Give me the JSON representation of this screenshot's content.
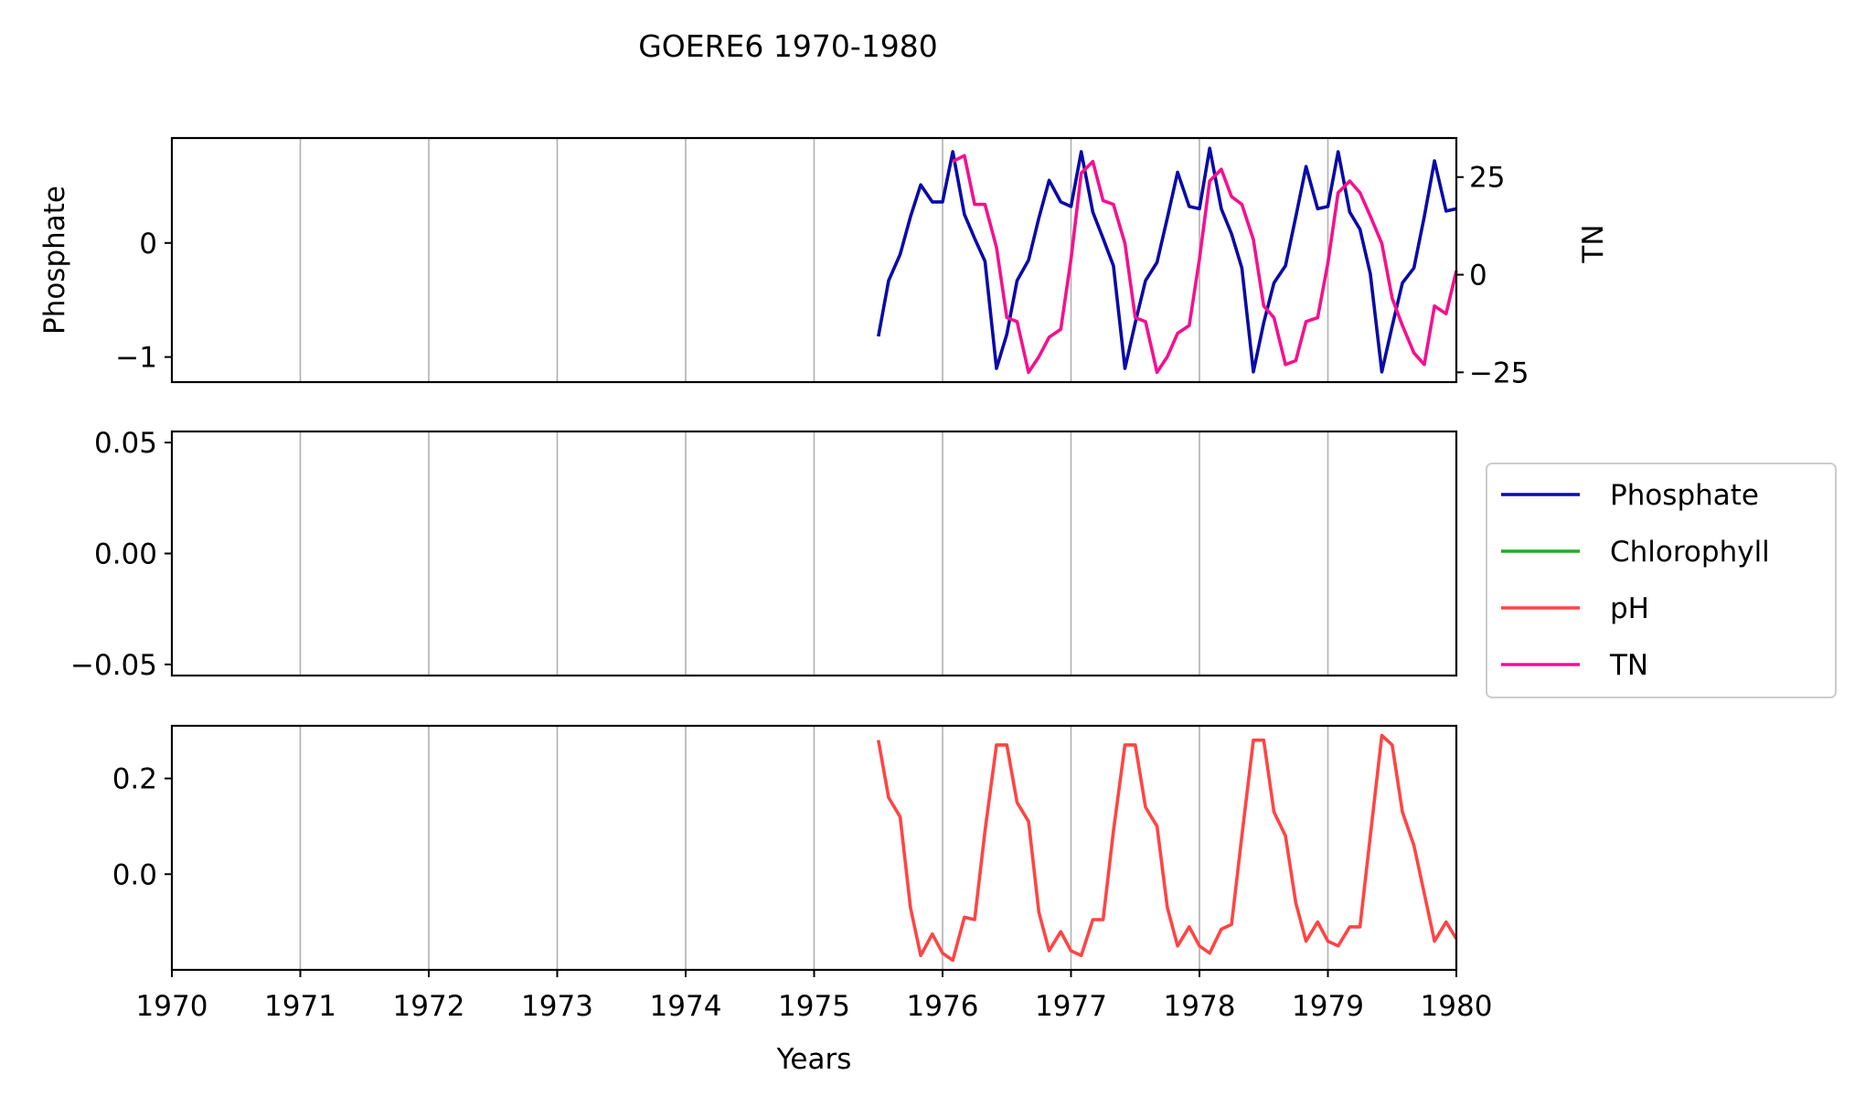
{
  "title": "GOERE6 1970-1980",
  "colors": {
    "phosphate": "#0a0aa8",
    "chlorophyll": "#22aa22",
    "ph": "#ff4444",
    "tn": "#f5108f",
    "grid": "#b0b0b0"
  },
  "legend": {
    "placement": "right, outside",
    "items": [
      {
        "label": "Phosphate",
        "color": "#0a0aa8"
      },
      {
        "label": "Chlorophyll",
        "color": "#22aa22"
      },
      {
        "label": "pH",
        "color": "#ff4444"
      },
      {
        "label": "TN",
        "color": "#f5108f"
      }
    ]
  },
  "chart_data": [
    {
      "type": "line",
      "title": "GOERE6 1970-1980",
      "ylabel": "Phosphate",
      "y2label": "TN",
      "xlim": [
        1970,
        1980
      ],
      "ylim": [
        -1.22,
        0.92
      ],
      "y2lim": [
        -27.5,
        35
      ],
      "x_ticks": [
        1971,
        1972,
        1973,
        1974,
        1975,
        1976,
        1977,
        1978,
        1979
      ],
      "y_ticks": [
        {
          "v": 0,
          "label": "0"
        },
        {
          "v": -1,
          "label": "−1"
        }
      ],
      "y2_ticks": [
        {
          "v": 25,
          "label": "25"
        },
        {
          "v": 0,
          "label": "0"
        },
        {
          "v": -25,
          "label": "−25"
        }
      ],
      "grid": "x",
      "series": [
        {
          "name": "Phosphate",
          "axis": "left",
          "color": "#0a0aa8",
          "x": [
            1975.5,
            1975.58,
            1975.67,
            1975.75,
            1975.83,
            1975.92,
            1976.0,
            1976.08,
            1976.17,
            1976.25,
            1976.33,
            1976.42,
            1976.5,
            1976.58,
            1976.67,
            1976.75,
            1976.83,
            1976.92,
            1977.0,
            1977.08,
            1977.17,
            1977.25,
            1977.33,
            1977.42,
            1977.5,
            1977.58,
            1977.67,
            1977.75,
            1977.83,
            1977.92,
            1978.0,
            1978.08,
            1978.17,
            1978.25,
            1978.33,
            1978.42,
            1978.5,
            1978.58,
            1978.67,
            1978.75,
            1978.83,
            1978.92,
            1979.0,
            1979.08,
            1979.17,
            1979.25,
            1979.33,
            1979.42,
            1979.5,
            1979.58,
            1979.67,
            1979.75,
            1979.83,
            1979.92,
            1980.0
          ],
          "y": [
            -0.82,
            -0.33,
            -0.1,
            0.23,
            0.51,
            0.36,
            0.36,
            0.8,
            0.25,
            0.04,
            -0.16,
            -1.1,
            -0.8,
            -0.33,
            -0.15,
            0.22,
            0.55,
            0.36,
            0.32,
            0.8,
            0.27,
            0.04,
            -0.2,
            -1.1,
            -0.7,
            -0.33,
            -0.17,
            0.22,
            0.62,
            0.32,
            0.3,
            0.83,
            0.3,
            0.08,
            -0.22,
            -1.13,
            -0.7,
            -0.35,
            -0.2,
            0.23,
            0.67,
            0.3,
            0.32,
            0.8,
            0.27,
            0.12,
            -0.27,
            -1.13,
            -0.73,
            -0.35,
            -0.22,
            0.23,
            0.72,
            0.28,
            0.3
          ]
        },
        {
          "name": "TN",
          "axis": "right",
          "color": "#f5108f",
          "x": [
            1976.08,
            1976.17,
            1976.25,
            1976.33,
            1976.42,
            1976.5,
            1976.58,
            1976.67,
            1976.75,
            1976.83,
            1976.92,
            1977.0,
            1977.08,
            1977.17,
            1977.25,
            1977.33,
            1977.42,
            1977.5,
            1977.58,
            1977.67,
            1977.75,
            1977.83,
            1977.92,
            1978.0,
            1978.08,
            1978.17,
            1978.25,
            1978.33,
            1978.42,
            1978.5,
            1978.58,
            1978.67,
            1978.75,
            1978.83,
            1978.92,
            1979.0,
            1979.08,
            1979.17,
            1979.25,
            1979.33,
            1979.42,
            1979.5,
            1979.58,
            1979.67,
            1979.75,
            1979.83,
            1979.92,
            1980.0
          ],
          "y": [
            29,
            30.5,
            18,
            18,
            7,
            -11,
            -12,
            -25,
            -21,
            -16,
            -14,
            4,
            26,
            29,
            19,
            18,
            8,
            -11,
            -12,
            -25,
            -21,
            -15,
            -13,
            4,
            24,
            27,
            20,
            18,
            9,
            -8,
            -11,
            -23,
            -22,
            -12,
            -11,
            3,
            21,
            24,
            21,
            15,
            8,
            -6,
            -13,
            -20,
            -23,
            -8,
            -10,
            1
          ]
        }
      ]
    },
    {
      "type": "line",
      "xlim": [
        1970,
        1980
      ],
      "ylim": [
        -0.055,
        0.055
      ],
      "x_ticks": [
        1971,
        1972,
        1973,
        1974,
        1975,
        1976,
        1977,
        1978,
        1979
      ],
      "y_ticks": [
        {
          "v": 0.05,
          "label": "0.05"
        },
        {
          "v": 0,
          "label": "0.00"
        },
        {
          "v": -0.05,
          "label": "−0.05"
        }
      ],
      "grid": "x",
      "series": []
    },
    {
      "type": "line",
      "xlabel": "Years",
      "xlim": [
        1970,
        1980
      ],
      "ylim": [
        -0.2,
        0.31
      ],
      "x_ticks": [
        1971,
        1972,
        1973,
        1974,
        1975,
        1976,
        1977,
        1978,
        1979
      ],
      "x_tick_labels": [
        {
          "v": 1970,
          "label": "1970"
        },
        {
          "v": 1971,
          "label": "1971"
        },
        {
          "v": 1972,
          "label": "1972"
        },
        {
          "v": 1973,
          "label": "1973"
        },
        {
          "v": 1974,
          "label": "1974"
        },
        {
          "v": 1975,
          "label": "1975"
        },
        {
          "v": 1976,
          "label": "1976"
        },
        {
          "v": 1977,
          "label": "1977"
        },
        {
          "v": 1978,
          "label": "1978"
        },
        {
          "v": 1979,
          "label": "1979"
        },
        {
          "v": 1980,
          "label": "1980"
        }
      ],
      "y_ticks": [
        {
          "v": 0.2,
          "label": "0.2"
        },
        {
          "v": 0,
          "label": "0.0"
        }
      ],
      "grid": "x",
      "series": [
        {
          "name": "pH",
          "axis": "left",
          "color": "#ff4444",
          "x": [
            1975.5,
            1975.58,
            1975.67,
            1975.75,
            1975.83,
            1975.92,
            1976.0,
            1976.08,
            1976.17,
            1976.25,
            1976.33,
            1976.42,
            1976.5,
            1976.58,
            1976.67,
            1976.75,
            1976.83,
            1976.92,
            1977.0,
            1977.08,
            1977.17,
            1977.25,
            1977.33,
            1977.42,
            1977.5,
            1977.58,
            1977.67,
            1977.75,
            1977.83,
            1977.92,
            1978.0,
            1978.08,
            1978.17,
            1978.25,
            1978.33,
            1978.42,
            1978.5,
            1978.58,
            1978.67,
            1978.75,
            1978.83,
            1978.92,
            1979.0,
            1979.08,
            1979.17,
            1979.25,
            1979.33,
            1979.42,
            1979.5,
            1979.58,
            1979.67,
            1979.75,
            1979.83,
            1979.92,
            1980.0
          ],
          "y": [
            0.28,
            0.16,
            0.12,
            -0.07,
            -0.17,
            -0.125,
            -0.165,
            -0.18,
            -0.09,
            -0.095,
            0.09,
            0.27,
            0.27,
            0.15,
            0.11,
            -0.08,
            -0.16,
            -0.12,
            -0.16,
            -0.17,
            -0.095,
            -0.095,
            0.09,
            0.27,
            0.27,
            0.14,
            0.1,
            -0.07,
            -0.15,
            -0.11,
            -0.15,
            -0.165,
            -0.115,
            -0.105,
            0.08,
            0.28,
            0.28,
            0.13,
            0.08,
            -0.06,
            -0.14,
            -0.1,
            -0.14,
            -0.15,
            -0.11,
            -0.11,
            0.08,
            0.29,
            0.27,
            0.13,
            0.06,
            -0.04,
            -0.14,
            -0.1,
            -0.135
          ]
        }
      ]
    }
  ]
}
